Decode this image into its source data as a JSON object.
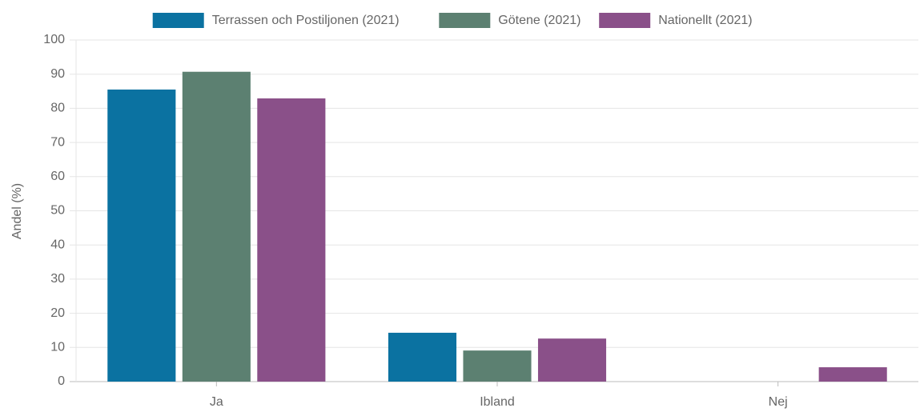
{
  "chart_data": {
    "type": "bar",
    "categories": [
      "Ja",
      "Ibland",
      "Nej"
    ],
    "series": [
      {
        "name": "Terrassen och Postiljonen (2021)",
        "color": "#0b72a1",
        "values": [
          85.5,
          14.3,
          0
        ]
      },
      {
        "name": "Götene (2021)",
        "color": "#5c8071",
        "values": [
          90.7,
          9.1,
          0
        ]
      },
      {
        "name": "Nationellt (2021)",
        "color": "#8a5089",
        "values": [
          82.9,
          12.6,
          4.2
        ]
      }
    ],
    "ylabel": "Andel (%)",
    "ylim": [
      0,
      100
    ],
    "yticks": [
      0,
      10,
      20,
      30,
      40,
      50,
      60,
      70,
      80,
      90,
      100
    ],
    "grid": true,
    "legend": "top"
  }
}
